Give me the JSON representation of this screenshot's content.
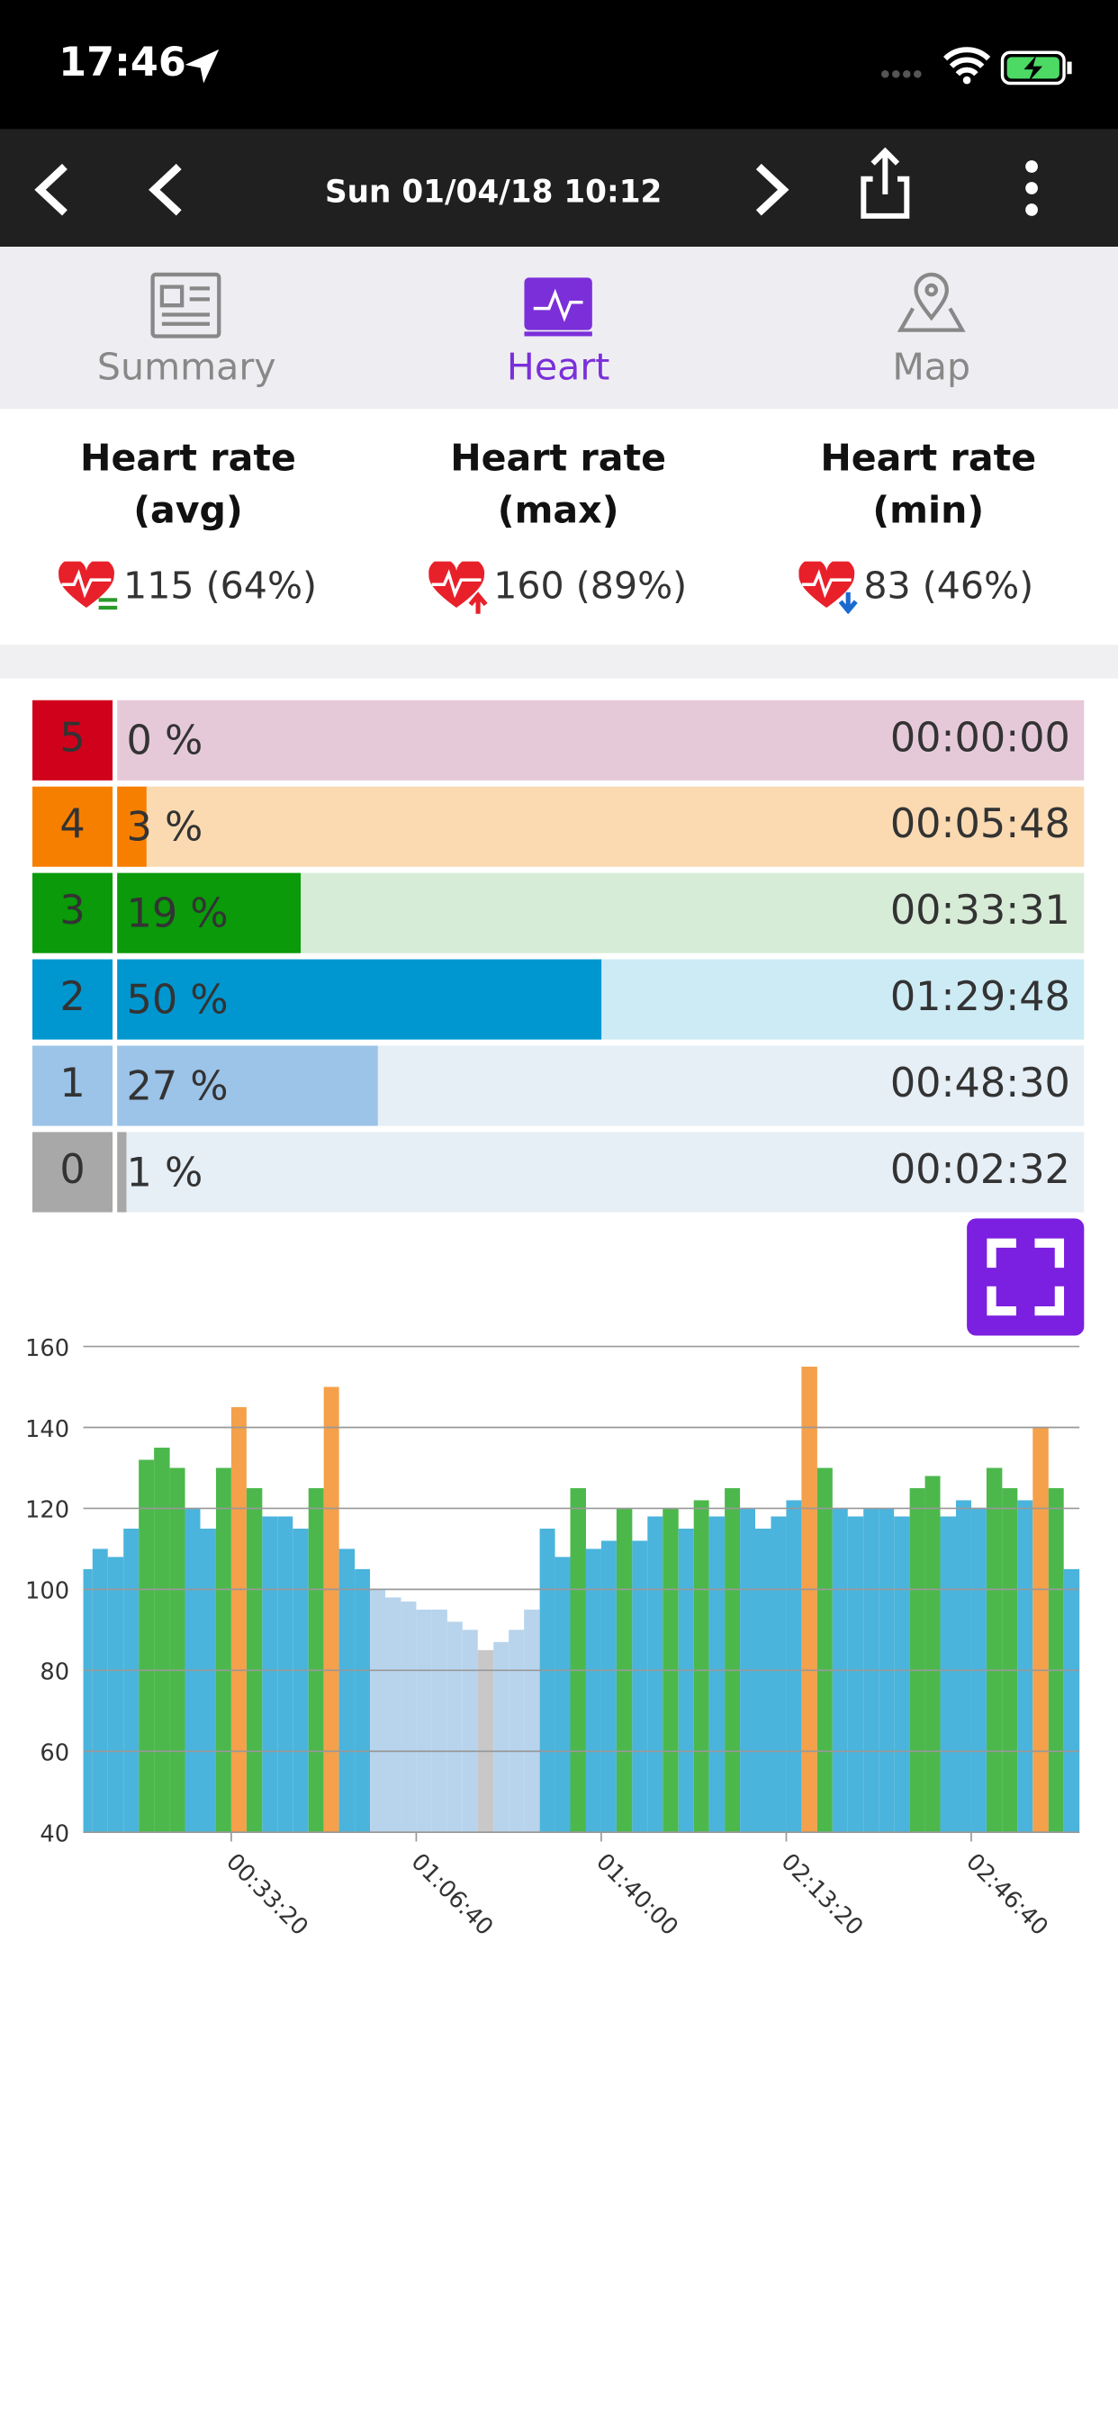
{
  "status_bar": {
    "time": "17:46"
  },
  "nav": {
    "title": "Sun 01/04/18 10:12"
  },
  "tabs": [
    {
      "label": "Summary",
      "active": false
    },
    {
      "label": "Heart",
      "active": true
    },
    {
      "label": "Map",
      "active": false
    }
  ],
  "stats": [
    {
      "label": "Heart rate (avg)",
      "value": "115 (64%)"
    },
    {
      "label": "Heart rate (max)",
      "value": "160 (89%)"
    },
    {
      "label": "Heart rate (min)",
      "value": "83 (46%)"
    }
  ],
  "zones": [
    {
      "zone": "5",
      "percent": 0,
      "percent_label": "0 %",
      "time": "00:00:00",
      "color": "#d0021b",
      "bg": "#e6c9d9"
    },
    {
      "zone": "4",
      "percent": 3,
      "percent_label": "3 %",
      "time": "00:05:48",
      "color": "#f77f00",
      "bg": "#fbdab2"
    },
    {
      "zone": "3",
      "percent": 19,
      "percent_label": "19 %",
      "time": "00:33:31",
      "color": "#0a9a0a",
      "bg": "#d7ecd7"
    },
    {
      "zone": "2",
      "percent": 50,
      "percent_label": "50 %",
      "time": "01:29:48",
      "color": "#0097d0",
      "bg": "#cdebf5"
    },
    {
      "zone": "1",
      "percent": 27,
      "percent_label": "27 %",
      "time": "00:48:30",
      "color": "#9cc3e8",
      "bg": "#e6eef6"
    },
    {
      "zone": "0",
      "percent": 1,
      "percent_label": "1 %",
      "time": "00:02:32",
      "color": "#a8a8a8",
      "bg": "#e6eef6"
    }
  ],
  "chart_data": {
    "type": "area",
    "x": [
      420,
      580,
      750,
      920,
      1080,
      1250,
      1420,
      1580,
      1750,
      1920,
      2080,
      2250,
      2420,
      2580,
      2750,
      2920,
      3080,
      3250,
      3420,
      3580,
      3750,
      3920,
      4080,
      4250,
      4420,
      4580,
      4750,
      4920,
      5080,
      5250,
      5420,
      5580,
      5750,
      5920,
      6080,
      6250,
      6420,
      6580,
      6750,
      6920,
      7080,
      7250,
      7420,
      7580,
      7750,
      7920,
      8080,
      8250,
      8420,
      8580,
      8750,
      8920,
      9080,
      9250,
      9420,
      9580,
      9750,
      9920,
      10080,
      10250,
      10420,
      10580,
      10750,
      10920,
      11080
    ],
    "values": [
      105,
      110,
      108,
      115,
      132,
      135,
      130,
      120,
      115,
      130,
      145,
      125,
      118,
      118,
      115,
      125,
      150,
      110,
      105,
      100,
      98,
      97,
      95,
      95,
      92,
      90,
      85,
      87,
      90,
      95,
      115,
      108,
      125,
      110,
      112,
      120,
      112,
      118,
      120,
      115,
      122,
      118,
      125,
      120,
      115,
      118,
      122,
      155,
      130,
      120,
      118,
      120,
      120,
      118,
      125,
      128,
      118,
      122,
      120,
      130,
      125,
      122,
      140,
      125,
      105
    ],
    "colors": [
      "#4ab4dc",
      "#4ab4dc",
      "#4ab4dc",
      "#4ab4dc",
      "#4cb84c",
      "#4cb84c",
      "#4cb84c",
      "#4ab4dc",
      "#4ab4dc",
      "#4cb84c",
      "#f5a04a",
      "#4cb84c",
      "#4ab4dc",
      "#4ab4dc",
      "#4ab4dc",
      "#4cb84c",
      "#f5a04a",
      "#4ab4dc",
      "#4ab4dc",
      "#b8d4ec",
      "#b8d4ec",
      "#b8d4ec",
      "#b8d4ec",
      "#b8d4ec",
      "#b8d4ec",
      "#b8d4ec",
      "#c8c8c8",
      "#b8d4ec",
      "#b8d4ec",
      "#b8d4ec",
      "#4ab4dc",
      "#4ab4dc",
      "#4cb84c",
      "#4ab4dc",
      "#4ab4dc",
      "#4cb84c",
      "#4ab4dc",
      "#4ab4dc",
      "#4cb84c",
      "#4ab4dc",
      "#4cb84c",
      "#4ab4dc",
      "#4cb84c",
      "#4ab4dc",
      "#4ab4dc",
      "#4ab4dc",
      "#4ab4dc",
      "#f5a04a",
      "#4cb84c",
      "#4ab4dc",
      "#4ab4dc",
      "#4ab4dc",
      "#4ab4dc",
      "#4ab4dc",
      "#4cb84c",
      "#4cb84c",
      "#4ab4dc",
      "#4ab4dc",
      "#4ab4dc",
      "#4cb84c",
      "#4cb84c",
      "#4ab4dc",
      "#f5a04a",
      "#4cb84c",
      "#4ab4dc"
    ],
    "xlim": [
      400,
      11170
    ],
    "ylim": [
      40,
      160
    ],
    "yticks": [
      40,
      60,
      80,
      100,
      120,
      140,
      160
    ],
    "xticks": [
      {
        "value": 2000,
        "label": "00:33:20"
      },
      {
        "value": 4000,
        "label": "01:06:40"
      },
      {
        "value": 6000,
        "label": "01:40:00"
      },
      {
        "value": 8000,
        "label": "02:13:20"
      },
      {
        "value": 10000,
        "label": "02:46:40"
      }
    ],
    "grid": true
  }
}
